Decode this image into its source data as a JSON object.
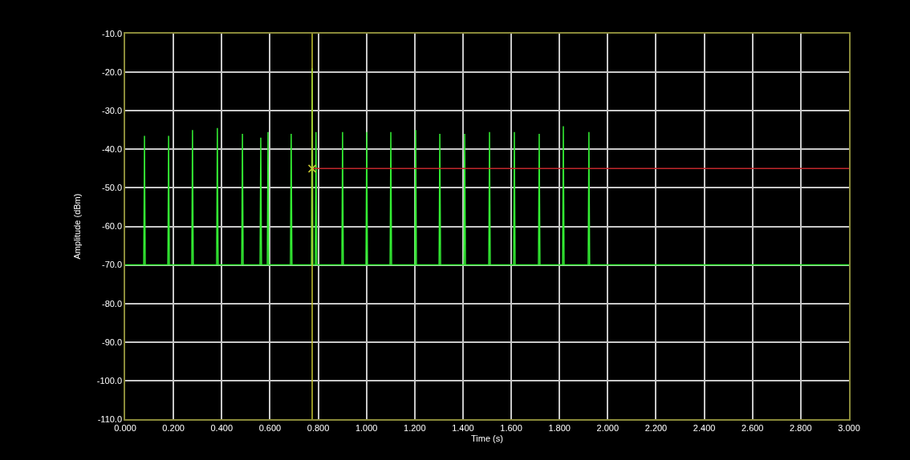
{
  "chart_data": {
    "type": "line",
    "xlabel": "Time (s)",
    "ylabel": "Amplitude (dBm)",
    "xlim": [
      0,
      3.0
    ],
    "ylim": [
      -110,
      -10
    ],
    "xticks": [
      {
        "value": 0,
        "label": "0.000"
      },
      {
        "value": 0.2,
        "label": "0.200"
      },
      {
        "value": 0.4,
        "label": "0.400"
      },
      {
        "value": 0.6,
        "label": "0.600"
      },
      {
        "value": 0.8,
        "label": "0.800"
      },
      {
        "value": 1.0,
        "label": "1.000"
      },
      {
        "value": 1.2,
        "label": "1.200"
      },
      {
        "value": 1.4,
        "label": "1.400"
      },
      {
        "value": 1.6,
        "label": "1.600"
      },
      {
        "value": 1.8,
        "label": "1.800"
      },
      {
        "value": 2.0,
        "label": "2.000"
      },
      {
        "value": 2.2,
        "label": "2.200"
      },
      {
        "value": 2.4,
        "label": "2.400"
      },
      {
        "value": 2.6,
        "label": "2.600"
      },
      {
        "value": 2.8,
        "label": "2.800"
      },
      {
        "value": 3.0,
        "label": "3.000"
      }
    ],
    "yticks": [
      {
        "value": -10,
        "label": "-10.0"
      },
      {
        "value": -20,
        "label": "-20.0"
      },
      {
        "value": -30,
        "label": "-30.0"
      },
      {
        "value": -40,
        "label": "-40.0"
      },
      {
        "value": -50,
        "label": "-50.0"
      },
      {
        "value": -60,
        "label": "-60.0"
      },
      {
        "value": -70,
        "label": "-70.0"
      },
      {
        "value": -80,
        "label": "-80.0"
      },
      {
        "value": -90,
        "label": "-90.0"
      },
      {
        "value": -100,
        "label": "-100.0"
      },
      {
        "value": -110,
        "label": "-110.0"
      }
    ],
    "grid": true,
    "marker": "none",
    "line_style": "solid",
    "ref_lines": [
      {
        "axis": "x",
        "value": 0.775,
        "color": "#c8c832"
      }
    ],
    "series": [
      {
        "color": "#33ee33",
        "x": [
          0,
          0.077,
          0.08,
          0.083,
          0.177,
          0.18,
          0.183,
          0.276,
          0.279,
          0.282,
          0.379,
          0.382,
          0.385,
          0.483,
          0.486,
          0.489,
          0.559,
          0.562,
          0.565,
          0.589,
          0.592,
          0.595,
          0.685,
          0.688,
          0.691,
          0.772,
          0.775,
          0.778,
          0.788,
          0.791,
          0.794,
          0.898,
          0.901,
          0.904,
          0.998,
          1.001,
          1.004,
          1.098,
          1.101,
          1.104,
          1.201,
          1.204,
          1.207,
          1.301,
          1.304,
          1.307,
          1.404,
          1.407,
          1.41,
          1.507,
          1.51,
          1.513,
          1.61,
          1.613,
          1.616,
          1.713,
          1.716,
          1.719,
          1.813,
          1.816,
          1.819,
          1.919,
          1.922,
          1.925,
          3.0
        ],
        "values": [
          -70,
          -70,
          -36.5,
          -70,
          -70,
          -36.5,
          -70,
          -70,
          -35,
          -70,
          -70,
          -34.5,
          -70,
          -70,
          -36,
          -70,
          -70,
          -37,
          -70,
          -70,
          -35.5,
          -70,
          -70,
          -36,
          -70,
          -70,
          -19,
          -70,
          -70,
          -35.5,
          -70,
          -70,
          -35.5,
          -70,
          -70,
          -35.5,
          -70,
          -70,
          -35.5,
          -70,
          -70,
          -35,
          -70,
          -70,
          -36,
          -70,
          -70,
          -36,
          -70,
          -70,
          -35.5,
          -70,
          -70,
          -35.5,
          -70,
          -70,
          -36,
          -70,
          -70,
          -34,
          -70,
          -70,
          -35.5,
          -70,
          -70
        ]
      },
      {
        "color": "#c0282c",
        "x": [
          0.775,
          3.0
        ],
        "values": [
          -45,
          -45
        ]
      },
      {
        "type": "scatter",
        "marker": "cross",
        "color": "#c8c832",
        "x": [
          0.775
        ],
        "values": [
          -45
        ]
      }
    ]
  }
}
